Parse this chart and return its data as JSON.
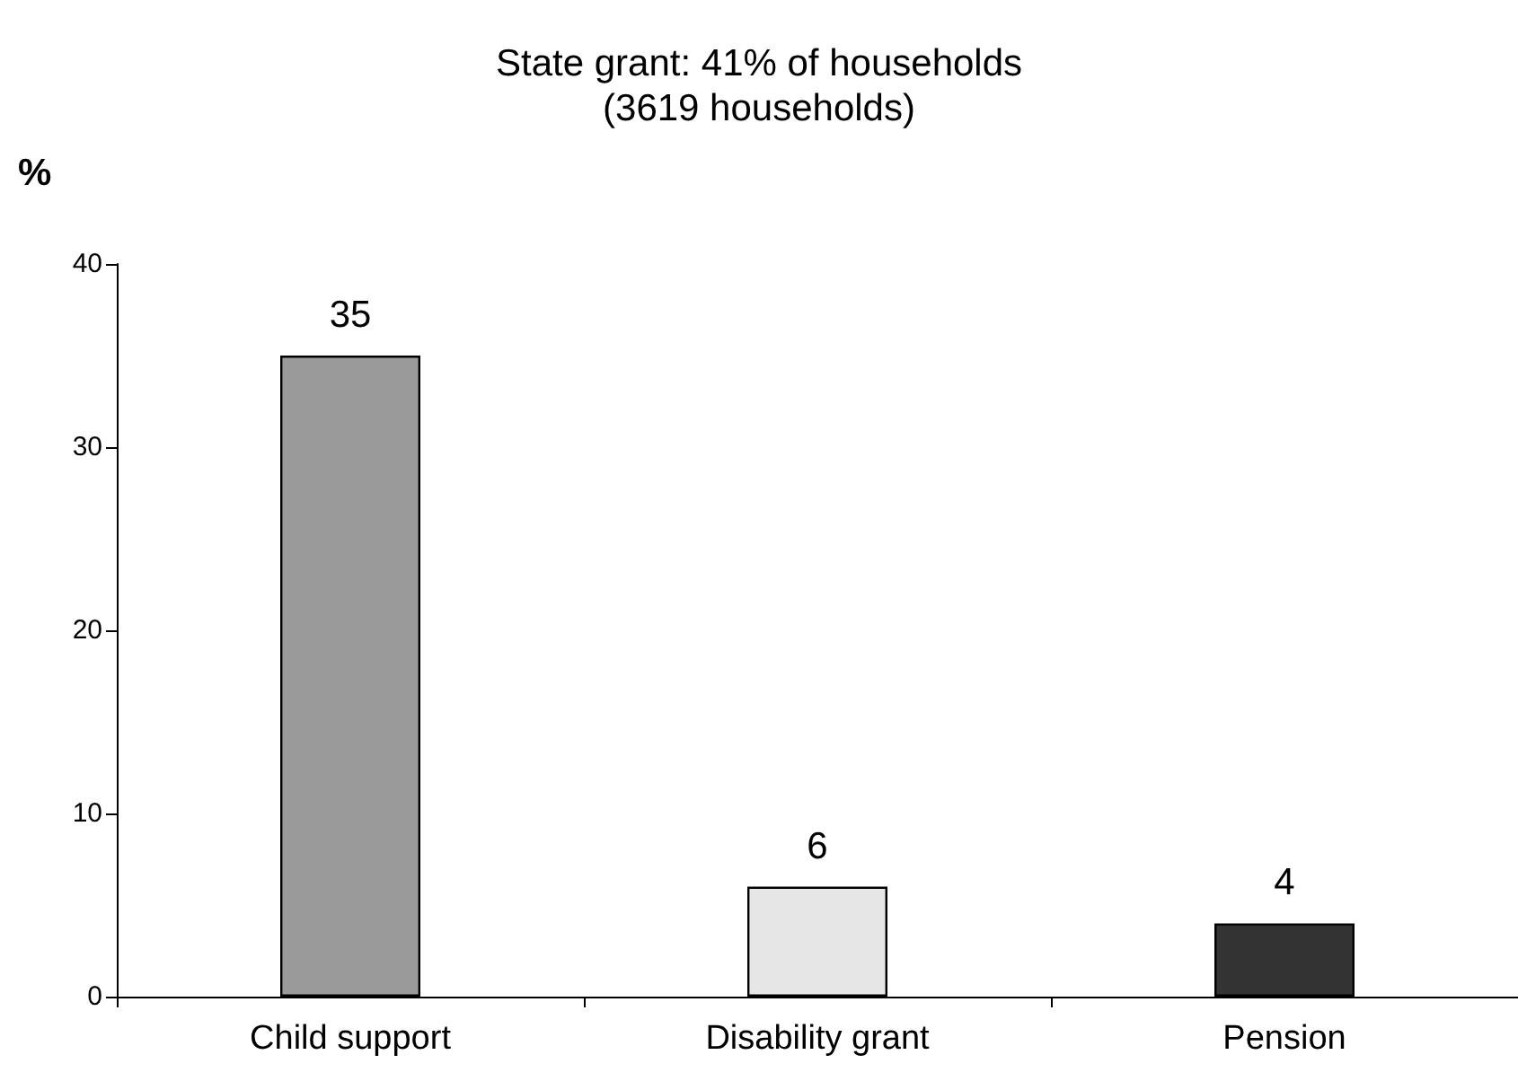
{
  "chart_data": {
    "type": "bar",
    "title": "State grant: 41% of households\n(3619 households)",
    "ylabel": "%",
    "categories": [
      "Child support",
      "Disability grant",
      "Pension"
    ],
    "values": [
      35,
      6,
      4
    ],
    "colors": [
      "#9a9a9a",
      "#e6e6e6",
      "#333333"
    ],
    "ylim": [
      0,
      40
    ],
    "yticks": [
      0,
      10,
      20,
      30,
      40
    ],
    "grid": false,
    "data_labels": true
  }
}
